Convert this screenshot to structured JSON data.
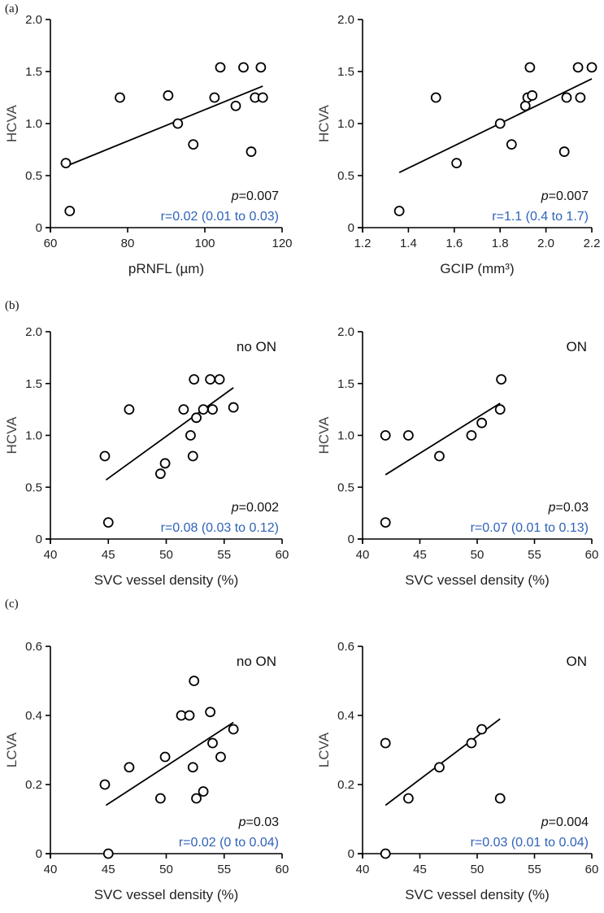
{
  "panel_labels": [
    "(a)",
    "(b)",
    "(c)"
  ],
  "chart_data": [
    {
      "type": "scatter",
      "group_label": "",
      "xlabel": "pRNFL (µm)",
      "ylabel": "HCVA",
      "xlim": [
        60,
        120
      ],
      "ylim": [
        0,
        2.0
      ],
      "xticks": [
        "60",
        "80",
        "100",
        "120"
      ],
      "yticks": [
        "0",
        "0.5",
        "1.0",
        "1.5",
        "2.0"
      ],
      "p_prefix": "p",
      "p_value": "=0.007",
      "r_text": "r=0.02 (0.01 to 0.03)",
      "points": [
        [
          64,
          0.62
        ],
        [
          65,
          0.16
        ],
        [
          78,
          1.25
        ],
        [
          90.5,
          1.27
        ],
        [
          93,
          1.0
        ],
        [
          97,
          0.8
        ],
        [
          102.5,
          1.25
        ],
        [
          104,
          1.54
        ],
        [
          108,
          1.17
        ],
        [
          110,
          1.54
        ],
        [
          112,
          0.73
        ],
        [
          113,
          1.25
        ],
        [
          114.5,
          1.54
        ],
        [
          115,
          1.25
        ]
      ],
      "fit_line": [
        [
          64,
          0.59
        ],
        [
          115,
          1.36
        ]
      ]
    },
    {
      "type": "scatter",
      "group_label": "",
      "xlabel": "GCIP (mm³)",
      "ylabel": "HCVA",
      "xlim": [
        1.2,
        2.2
      ],
      "ylim": [
        0,
        2.0
      ],
      "xticks": [
        "1.2",
        "1.4",
        "1.6",
        "1.8",
        "2.0",
        "2.2"
      ],
      "yticks": [
        "0",
        "0.5",
        "1.0",
        "1.5",
        "2.0"
      ],
      "p_prefix": "p",
      "p_value": "=0.007",
      "r_text": "r=1.1 (0.4 to 1.7)",
      "points": [
        [
          1.36,
          0.16
        ],
        [
          1.52,
          1.25
        ],
        [
          1.61,
          0.62
        ],
        [
          1.8,
          1.0
        ],
        [
          1.85,
          0.8
        ],
        [
          1.91,
          1.17
        ],
        [
          1.92,
          1.25
        ],
        [
          1.93,
          1.54
        ],
        [
          1.94,
          1.27
        ],
        [
          2.08,
          0.73
        ],
        [
          2.09,
          1.25
        ],
        [
          2.14,
          1.54
        ],
        [
          2.15,
          1.25
        ],
        [
          2.2,
          1.54
        ]
      ],
      "fit_line": [
        [
          1.36,
          0.53
        ],
        [
          2.2,
          1.43
        ]
      ]
    },
    {
      "type": "scatter",
      "group_label": "no ON",
      "xlabel": "SVC vessel density (%)",
      "ylabel": "HCVA",
      "xlim": [
        40,
        60
      ],
      "ylim": [
        0,
        2.0
      ],
      "xticks": [
        "40",
        "45",
        "50",
        "55",
        "60"
      ],
      "yticks": [
        "0",
        "0.5",
        "1.0",
        "1.5",
        "2.0"
      ],
      "p_prefix": "p",
      "p_value": "=0.002",
      "r_text": "r=0.08 (0.03 to 0.12)",
      "points": [
        [
          44.7,
          0.8
        ],
        [
          45,
          0.16
        ],
        [
          46.8,
          1.25
        ],
        [
          49.5,
          0.63
        ],
        [
          49.9,
          0.73
        ],
        [
          51.5,
          1.25
        ],
        [
          52.1,
          1.0
        ],
        [
          52.3,
          0.8
        ],
        [
          52.4,
          1.54
        ],
        [
          52.6,
          1.17
        ],
        [
          53.2,
          1.25
        ],
        [
          53.8,
          1.54
        ],
        [
          54,
          1.25
        ],
        [
          54.6,
          1.54
        ],
        [
          55.8,
          1.27
        ]
      ],
      "fit_line": [
        [
          44.8,
          0.57
        ],
        [
          55.8,
          1.46
        ]
      ]
    },
    {
      "type": "scatter",
      "group_label": "ON",
      "xlabel": "SVC vessel density (%)",
      "ylabel": "HCVA",
      "xlim": [
        40,
        60
      ],
      "ylim": [
        0,
        2.0
      ],
      "xticks": [
        "40",
        "45",
        "50",
        "55",
        "60"
      ],
      "yticks": [
        "0",
        "0.5",
        "1.0",
        "1.5",
        "2.0"
      ],
      "p_prefix": "p",
      "p_value": "=0.03",
      "r_text": "r=0.07 (0.01 to 0.13)",
      "points": [
        [
          42,
          1.0
        ],
        [
          42,
          0.16
        ],
        [
          44,
          1.0
        ],
        [
          46.7,
          0.8
        ],
        [
          49.5,
          1.0
        ],
        [
          50.4,
          1.12
        ],
        [
          52,
          1.25
        ],
        [
          52.1,
          1.54
        ]
      ],
      "fit_line": [
        [
          42,
          0.62
        ],
        [
          52,
          1.31
        ]
      ]
    },
    {
      "type": "scatter",
      "group_label": "no ON",
      "xlabel": "SVC vessel density (%)",
      "ylabel": "LCVA",
      "xlim": [
        40,
        60
      ],
      "ylim": [
        0,
        0.6
      ],
      "xticks": [
        "40",
        "45",
        "50",
        "55",
        "60"
      ],
      "yticks": [
        "0",
        "0.2",
        "0.4",
        "0.6"
      ],
      "p_prefix": "p",
      "p_value": "=0.03",
      "r_text": "r=0.02 (0 to 0.04)",
      "points": [
        [
          44.7,
          0.2
        ],
        [
          45,
          0.0
        ],
        [
          46.8,
          0.25
        ],
        [
          49.5,
          0.16
        ],
        [
          49.9,
          0.28
        ],
        [
          51.3,
          0.4
        ],
        [
          52,
          0.4
        ],
        [
          52.3,
          0.25
        ],
        [
          52.4,
          0.5
        ],
        [
          52.6,
          0.16
        ],
        [
          53.2,
          0.18
        ],
        [
          53.8,
          0.41
        ],
        [
          54,
          0.32
        ],
        [
          54.7,
          0.28
        ],
        [
          55.8,
          0.36
        ]
      ],
      "fit_line": [
        [
          44.8,
          0.14
        ],
        [
          55.8,
          0.38
        ]
      ]
    },
    {
      "type": "scatter",
      "group_label": "ON",
      "xlabel": "SVC vessel density (%)",
      "ylabel": "LCVA",
      "xlim": [
        40,
        60
      ],
      "ylim": [
        0,
        0.6
      ],
      "xticks": [
        "40",
        "45",
        "50",
        "55",
        "60"
      ],
      "yticks": [
        "0",
        "0.2",
        "0.4",
        "0.6"
      ],
      "p_prefix": "p",
      "p_value": "=0.004",
      "r_text": "r=0.03 (0.01 to 0.04)",
      "points": [
        [
          42,
          0.32
        ],
        [
          42,
          0.0
        ],
        [
          44,
          0.16
        ],
        [
          46.7,
          0.25
        ],
        [
          49.5,
          0.32
        ],
        [
          50.4,
          0.36
        ],
        [
          52,
          0.16
        ]
      ],
      "fit_line": [
        [
          42,
          0.14
        ],
        [
          52,
          0.39
        ]
      ]
    }
  ]
}
